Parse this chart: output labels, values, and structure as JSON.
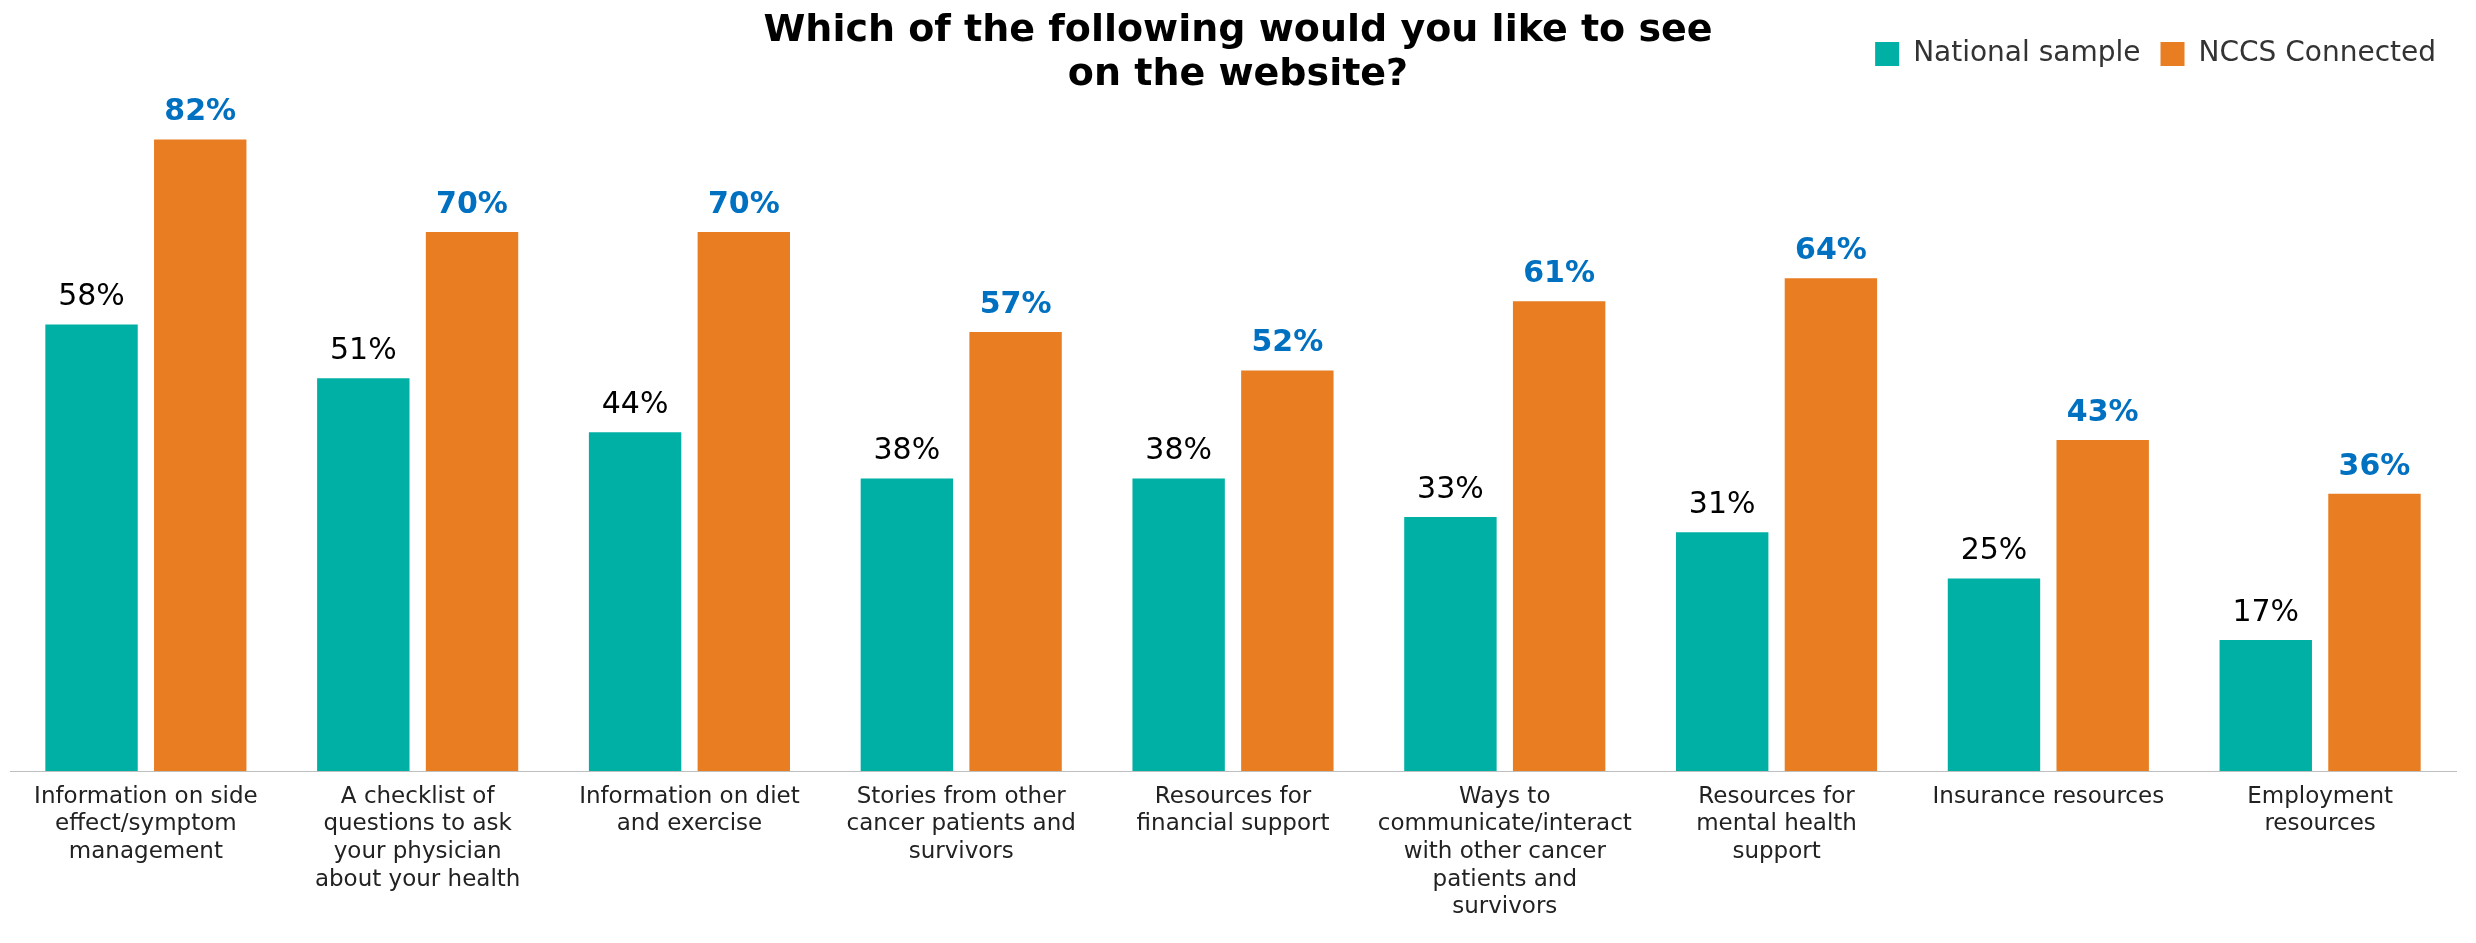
{
  "chart_data": {
    "type": "bar",
    "title": "Which of the following would you like to see on the website?",
    "categories": [
      "Information on side effect/symptom management",
      "A checklist of questions to ask your physician about your health",
      "Information on diet and exercise",
      "Stories from other cancer patients and survivors",
      "Resources for financial support",
      "Ways to communicate/interact with other cancer patients and survivors",
      "Resources for mental health support",
      "Insurance resources",
      "Employment resources"
    ],
    "series": [
      {
        "name": "National sample",
        "color": "#00b0a4",
        "values": [
          58,
          51,
          44,
          38,
          38,
          33,
          31,
          25,
          17
        ],
        "value_labels": [
          "58%",
          "51%",
          "44%",
          "38%",
          "38%",
          "33%",
          "31%",
          "25%",
          "17%"
        ]
      },
      {
        "name": "NCCS Connected",
        "color": "#e87d22",
        "values": [
          82,
          70,
          70,
          57,
          52,
          61,
          64,
          43,
          36
        ],
        "value_labels": [
          "82%",
          "70%",
          "70%",
          "57%",
          "52%",
          "61%",
          "64%",
          "43%",
          "36%"
        ]
      }
    ],
    "legend": "top right",
    "grid": false
  }
}
